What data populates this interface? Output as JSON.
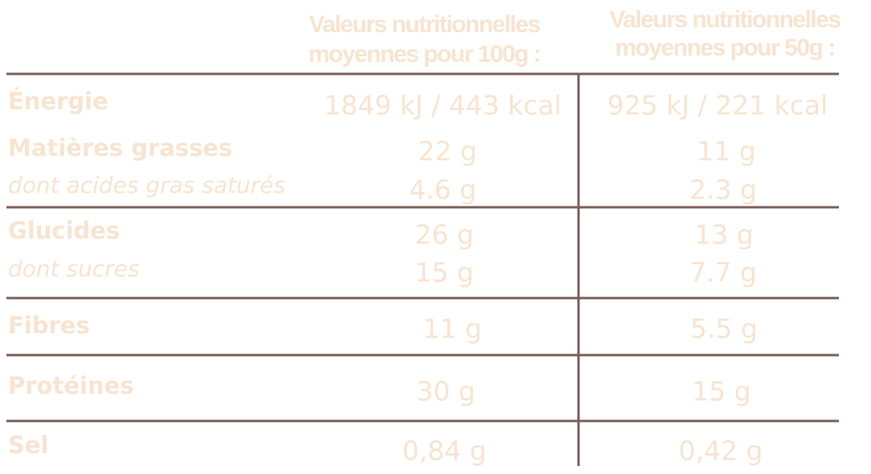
{
  "header": {
    "columns": [
      [
        "Valeurs nutritionnelles",
        "moyennes pour 100g :"
      ],
      [
        "Valeurs nutritionnelles",
        "moyennes pour 50g :"
      ]
    ]
  },
  "table": {
    "rows": [
      [
        "Énergie",
        "1849 kJ / 443 kcal",
        "925 kJ / 221 kcal"
      ],
      [
        "Matières grasses",
        "22 g",
        "11 g"
      ],
      [
        "dont acides gras saturés",
        "4.6 g",
        "2.3 g"
      ],
      [
        "Glucides",
        "26 g",
        "13 g"
      ],
      [
        "dont sucres",
        "15 g",
        "7.7 g"
      ],
      [
        "Fibres",
        "11 g",
        "5.5 g"
      ],
      [
        "Protéines",
        "30 g",
        "15 g"
      ],
      [
        "Sel",
        "0,84 g",
        "0,42 g"
      ]
    ]
  }
}
